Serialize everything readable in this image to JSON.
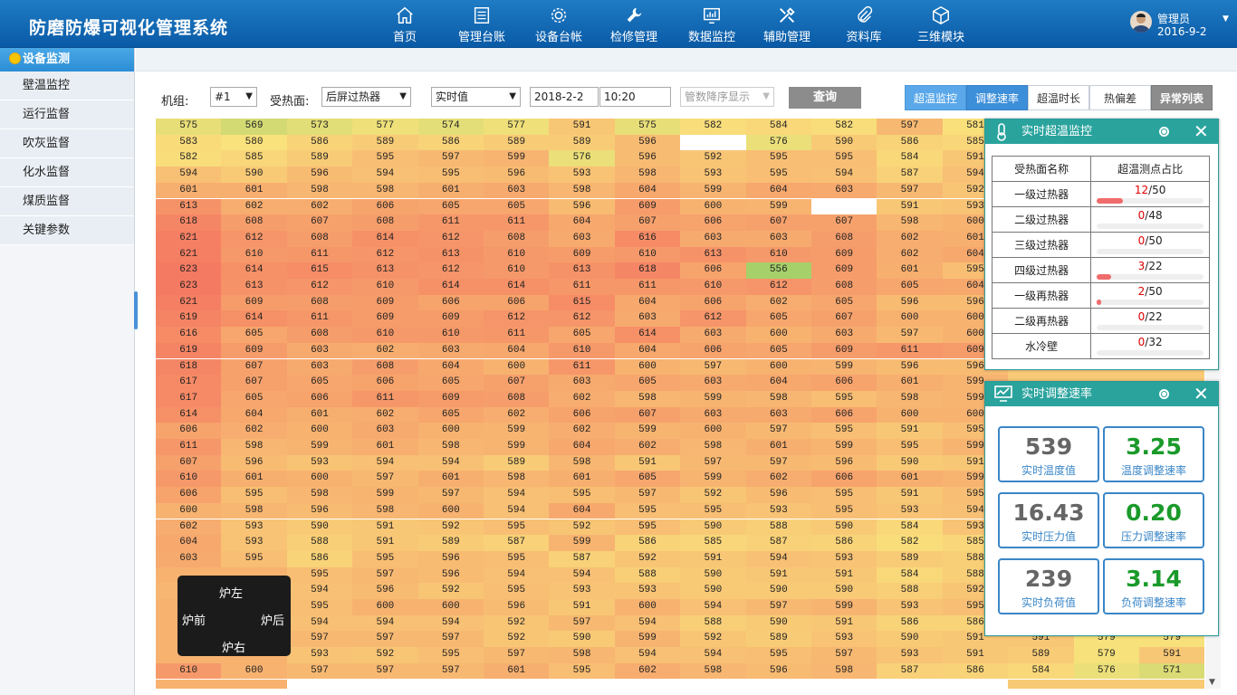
{
  "app": {
    "title": "防磨防爆可视化管理系统"
  },
  "nav": [
    {
      "label": "首页",
      "icon": "home-icon"
    },
    {
      "label": "管理台账",
      "icon": "ledger-icon"
    },
    {
      "label": "设备台帐",
      "icon": "gear-icon"
    },
    {
      "label": "检修管理",
      "icon": "wrench-icon"
    },
    {
      "label": "数据监控",
      "icon": "monitor-chart-icon"
    },
    {
      "label": "辅助管理",
      "icon": "tools-icon"
    },
    {
      "label": "资料库",
      "icon": "paperclip-icon"
    },
    {
      "label": "三维模块",
      "icon": "cube-icon"
    }
  ],
  "user": {
    "name": "管理员",
    "date": "2016-9-2"
  },
  "sidebar": {
    "header": "设备监测",
    "items": [
      {
        "label": "壁温监控"
      },
      {
        "label": "运行监督"
      },
      {
        "label": "吹灰监督"
      },
      {
        "label": "化水监督"
      },
      {
        "label": "煤质监督"
      },
      {
        "label": "关键参数"
      }
    ]
  },
  "filter": {
    "unit_label": "机组:",
    "unit_value": "#1",
    "surface_label": "受热面:",
    "surface_value": "后屏过热器",
    "mode_value": "实时值",
    "date": "2018-2-2",
    "time": "10:20",
    "sort_placeholder": "管数降序显示",
    "query": "查询"
  },
  "tabs": [
    {
      "label": "超温监控",
      "active": true
    },
    {
      "label": "调整速率",
      "active": true
    },
    {
      "label": "超温时长",
      "active": false
    },
    {
      "label": "热偏差",
      "active": false
    },
    {
      "label": "异常列表",
      "active": false
    }
  ],
  "compass": {
    "left": "炉左",
    "front": "炉前",
    "back": "炉后",
    "right": "炉右"
  },
  "heatmap": {
    "colors": {
      "low": "#a6d06a",
      "mid": "#f9e27c",
      "high": "#f57a62",
      "empty": "#ffffff"
    },
    "rows": [
      [
        "575",
        "569",
        "573",
        "577",
        "574",
        "577",
        "591",
        "575",
        "582",
        "584",
        "582",
        "597",
        "581",
        "",
        "",
        "",
        ""
      ],
      [
        "583",
        "580",
        "586",
        "589",
        "586",
        "589",
        "589",
        "596",
        "",
        "576",
        "590",
        "586",
        "585",
        "",
        "",
        "",
        ""
      ],
      [
        "582",
        "585",
        "589",
        "595",
        "597",
        "599",
        "576",
        "596",
        "592",
        "595",
        "595",
        "584",
        "591",
        "",
        "",
        "",
        ""
      ],
      [
        "594",
        "590",
        "596",
        "594",
        "595",
        "596",
        "593",
        "598",
        "593",
        "595",
        "594",
        "587",
        "594",
        "",
        "",
        "",
        ""
      ],
      [
        "601",
        "601",
        "598",
        "598",
        "601",
        "603",
        "598",
        "604",
        "599",
        "604",
        "603",
        "597",
        "592",
        "",
        "",
        "",
        ""
      ],
      [
        "613",
        "602",
        "602",
        "606",
        "605",
        "605",
        "596",
        "609",
        "600",
        "599",
        "",
        "591",
        "593",
        "",
        "",
        "",
        ""
      ],
      [
        "618",
        "608",
        "607",
        "608",
        "611",
        "611",
        "604",
        "607",
        "606",
        "607",
        "607",
        "598",
        "600",
        "",
        "",
        "",
        ""
      ],
      [
        "621",
        "612",
        "608",
        "614",
        "612",
        "608",
        "603",
        "616",
        "603",
        "603",
        "608",
        "602",
        "601",
        "",
        "",
        "",
        ""
      ],
      [
        "621",
        "610",
        "611",
        "612",
        "613",
        "610",
        "609",
        "610",
        "613",
        "610",
        "609",
        "602",
        "604",
        "",
        "",
        "",
        ""
      ],
      [
        "623",
        "614",
        "615",
        "613",
        "612",
        "610",
        "613",
        "618",
        "606",
        "556",
        "609",
        "601",
        "595",
        "",
        "",
        "",
        ""
      ],
      [
        "623",
        "613",
        "612",
        "610",
        "614",
        "614",
        "611",
        "611",
        "610",
        "612",
        "608",
        "605",
        "604",
        "",
        "",
        "",
        ""
      ],
      [
        "621",
        "609",
        "608",
        "609",
        "606",
        "606",
        "615",
        "604",
        "606",
        "602",
        "605",
        "596",
        "596",
        "",
        "",
        "",
        ""
      ],
      [
        "619",
        "614",
        "611",
        "609",
        "609",
        "612",
        "612",
        "603",
        "612",
        "605",
        "607",
        "600",
        "600",
        "",
        "",
        "",
        ""
      ],
      [
        "616",
        "605",
        "608",
        "610",
        "610",
        "611",
        "605",
        "614",
        "603",
        "600",
        "603",
        "597",
        "600",
        "",
        "",
        "",
        ""
      ],
      [
        "619",
        "609",
        "603",
        "602",
        "603",
        "604",
        "610",
        "604",
        "606",
        "605",
        "609",
        "611",
        "609",
        "",
        "",
        "",
        ""
      ],
      [
        "618",
        "607",
        "603",
        "608",
        "604",
        "600",
        "611",
        "600",
        "597",
        "600",
        "599",
        "596",
        "596",
        "",
        "",
        "",
        ""
      ],
      [
        "617",
        "607",
        "605",
        "606",
        "605",
        "607",
        "603",
        "605",
        "603",
        "604",
        "606",
        "601",
        "599",
        "",
        "",
        "",
        ""
      ],
      [
        "617",
        "605",
        "606",
        "611",
        "609",
        "608",
        "602",
        "598",
        "599",
        "598",
        "595",
        "598",
        "599",
        "",
        "",
        "",
        ""
      ],
      [
        "614",
        "604",
        "601",
        "602",
        "605",
        "602",
        "606",
        "607",
        "603",
        "603",
        "606",
        "600",
        "600",
        "",
        "",
        "",
        ""
      ],
      [
        "606",
        "602",
        "600",
        "603",
        "600",
        "599",
        "602",
        "599",
        "600",
        "597",
        "595",
        "591",
        "595",
        "",
        "",
        "",
        ""
      ],
      [
        "611",
        "598",
        "599",
        "601",
        "598",
        "599",
        "604",
        "602",
        "598",
        "601",
        "599",
        "595",
        "599",
        "",
        "",
        "",
        ""
      ],
      [
        "607",
        "596",
        "593",
        "594",
        "594",
        "589",
        "598",
        "591",
        "597",
        "597",
        "596",
        "590",
        "591",
        "",
        "",
        "",
        ""
      ],
      [
        "610",
        "601",
        "600",
        "597",
        "601",
        "598",
        "601",
        "605",
        "599",
        "602",
        "606",
        "601",
        "599",
        "",
        "",
        "",
        ""
      ],
      [
        "606",
        "595",
        "598",
        "599",
        "597",
        "594",
        "595",
        "597",
        "592",
        "596",
        "595",
        "591",
        "595",
        "",
        "",
        "",
        ""
      ],
      [
        "600",
        "598",
        "596",
        "598",
        "600",
        "594",
        "604",
        "595",
        "595",
        "593",
        "595",
        "593",
        "594",
        "",
        "",
        "",
        ""
      ],
      [
        "602",
        "593",
        "590",
        "591",
        "592",
        "595",
        "592",
        "595",
        "590",
        "588",
        "590",
        "584",
        "593",
        "",
        "",
        "",
        ""
      ],
      [
        "604",
        "593",
        "588",
        "591",
        "589",
        "587",
        "599",
        "586",
        "585",
        "587",
        "586",
        "582",
        "585",
        "",
        "",
        "",
        ""
      ],
      [
        "603",
        "595",
        "586",
        "595",
        "596",
        "595",
        "587",
        "592",
        "591",
        "594",
        "593",
        "589",
        "588",
        "",
        "",
        "",
        ""
      ],
      [
        "",
        "",
        "595",
        "597",
        "596",
        "594",
        "594",
        "588",
        "590",
        "591",
        "591",
        "584",
        "588",
        "",
        "",
        "",
        ""
      ],
      [
        "598",
        "594",
        "594",
        "596",
        "592",
        "595",
        "593",
        "593",
        "590",
        "590",
        "590",
        "588",
        "592",
        "",
        "",
        "",
        ""
      ],
      [
        "",
        "",
        "595",
        "600",
        "600",
        "596",
        "591",
        "600",
        "594",
        "597",
        "599",
        "593",
        "595",
        "",
        "",
        "",
        ""
      ],
      [
        "",
        "",
        "594",
        "594",
        "594",
        "592",
        "597",
        "594",
        "588",
        "590",
        "591",
        "586",
        "586",
        "",
        "",
        "",
        ""
      ],
      [
        "",
        "",
        "597",
        "597",
        "597",
        "592",
        "590",
        "599",
        "592",
        "589",
        "593",
        "590",
        "591",
        "591",
        "579",
        "579",
        ""
      ],
      [
        "",
        "",
        "593",
        "592",
        "595",
        "597",
        "598",
        "594",
        "594",
        "595",
        "597",
        "593",
        "591",
        "589",
        "579",
        "591",
        ""
      ],
      [
        "610",
        "600",
        "597",
        "597",
        "597",
        "601",
        "595",
        "602",
        "598",
        "596",
        "598",
        "587",
        "586",
        "584",
        "576",
        "571",
        ""
      ],
      [
        "",
        "",
        "",
        "",
        "",
        "",
        "",
        "",
        "",
        "",
        "",
        "",
        "",
        "",
        "",
        "",
        ""
      ]
    ]
  },
  "overtemp": {
    "title": "实时超温监控",
    "col_name": "受热面名称",
    "col_ratio": "超温测点占比",
    "rows": [
      {
        "name": "一级过热器",
        "hit": "12",
        "total": "/50",
        "ratio": 0.24
      },
      {
        "name": "二级过热器",
        "hit": "0",
        "total": "/48",
        "ratio": 0
      },
      {
        "name": "三级过热器",
        "hit": "0",
        "total": "/50",
        "ratio": 0
      },
      {
        "name": "四级过热器",
        "hit": "3",
        "total": "/22",
        "ratio": 0.136
      },
      {
        "name": "一级再热器",
        "hit": "2",
        "total": "/50",
        "ratio": 0.04
      },
      {
        "name": "二级再热器",
        "hit": "0",
        "total": "/22",
        "ratio": 0
      },
      {
        "name": "水冷壁",
        "hit": "0",
        "total": "/32",
        "ratio": 0
      }
    ]
  },
  "adjust": {
    "title": "实时调整速率",
    "cards": [
      {
        "value": "539",
        "label": "实时温度值",
        "color": "#666666"
      },
      {
        "value": "3.25",
        "label": "温度调整速率",
        "color": "#1a9a2a"
      },
      {
        "value": "16.43",
        "label": "实时压力值",
        "color": "#666666"
      },
      {
        "value": "0.20",
        "label": "压力调整速率",
        "color": "#1a9a2a"
      },
      {
        "value": "239",
        "label": "实时负荷值",
        "color": "#666666"
      },
      {
        "value": "3.14",
        "label": "负荷调整速率",
        "color": "#1a9a2a"
      }
    ]
  }
}
